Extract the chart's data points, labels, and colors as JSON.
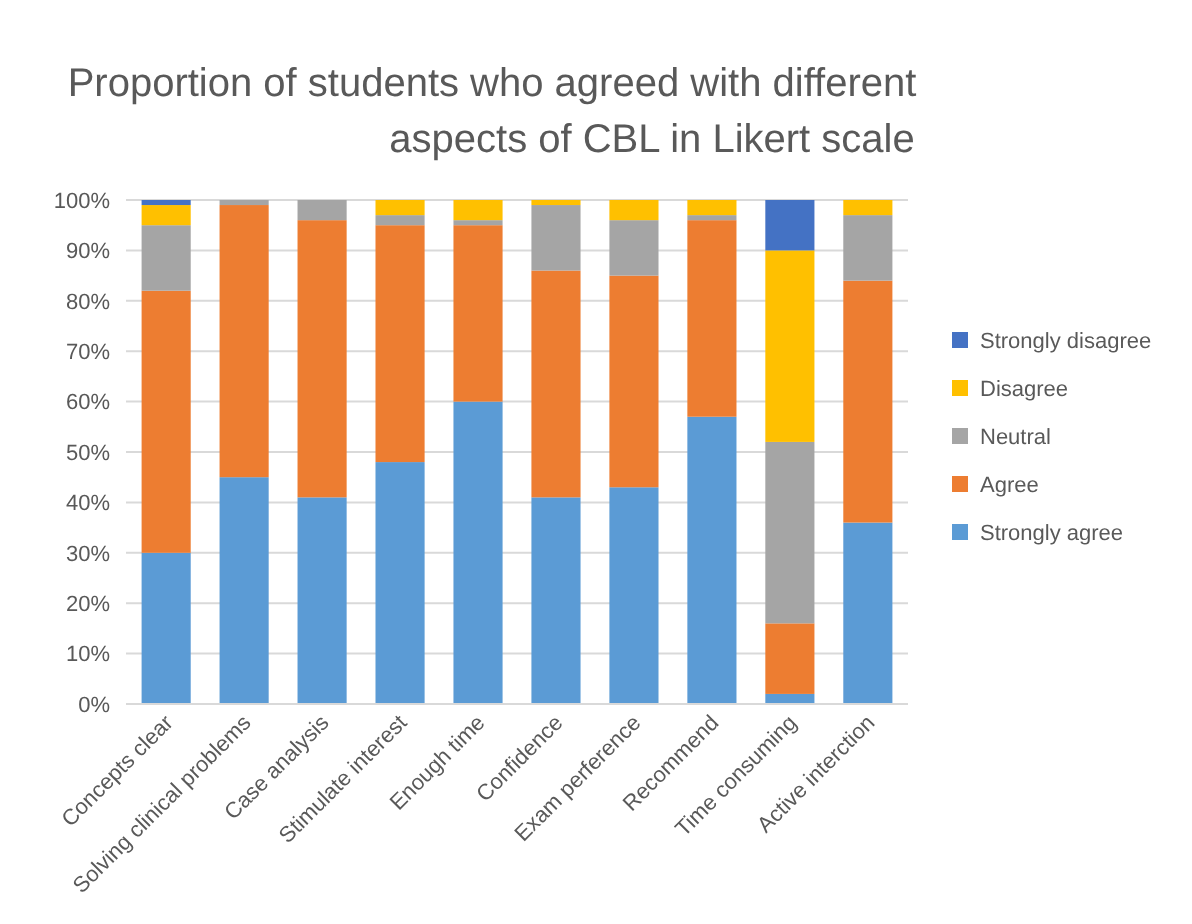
{
  "chart_data": {
    "type": "bar",
    "stacked": true,
    "title": "Proportion of students who agreed with different aspects of CBL in Likert scale",
    "categories": [
      "Concepts clear",
      "Solving clinical problems",
      "Case analysis",
      "Stimulate interest",
      "Enough time",
      "Confidence",
      "Exam perference",
      "Recommend",
      "Time consuming",
      "Active interction"
    ],
    "series": [
      {
        "name": "Strongly agree",
        "color": "#5b9bd5",
        "values": [
          30,
          45,
          41,
          48,
          60,
          41,
          43,
          57,
          2,
          36
        ]
      },
      {
        "name": "Agree",
        "color": "#ed7d31",
        "values": [
          52,
          54,
          55,
          47,
          35,
          45,
          42,
          39,
          14,
          48
        ]
      },
      {
        "name": "Neutral",
        "color": "#a5a5a5",
        "values": [
          13,
          1,
          4,
          2,
          1,
          13,
          11,
          1,
          36,
          13
        ]
      },
      {
        "name": "Disagree",
        "color": "#ffc000",
        "values": [
          4,
          0,
          0,
          3,
          4,
          1,
          4,
          3,
          38,
          3
        ]
      },
      {
        "name": "Strongly disagree",
        "color": "#4472c4",
        "values": [
          1,
          0,
          0,
          0,
          0,
          0,
          0,
          0,
          10,
          0
        ]
      }
    ],
    "ylim": [
      0,
      100
    ],
    "yticks": [
      {
        "value": 0,
        "label": "0%"
      },
      {
        "value": 10,
        "label": "10%"
      },
      {
        "value": 20,
        "label": "20%"
      },
      {
        "value": 30,
        "label": "30%"
      },
      {
        "value": 40,
        "label": "40%"
      },
      {
        "value": 50,
        "label": "50%"
      },
      {
        "value": 60,
        "label": "60%"
      },
      {
        "value": 70,
        "label": "70%"
      },
      {
        "value": 80,
        "label": "80%"
      },
      {
        "value": 90,
        "label": "90%"
      },
      {
        "value": 100,
        "label": "100%"
      }
    ],
    "grid": "y",
    "legend": "right"
  }
}
